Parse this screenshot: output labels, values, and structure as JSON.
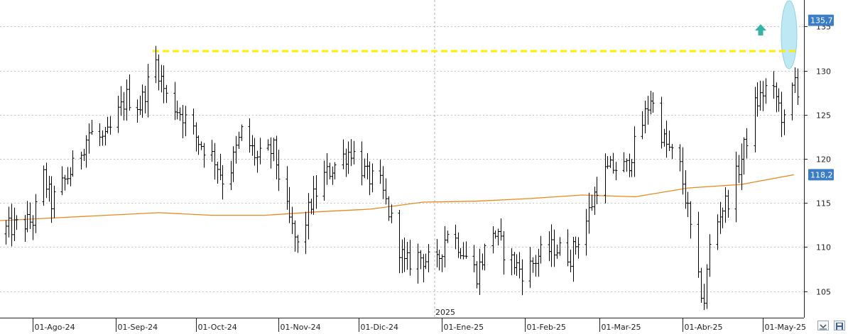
{
  "chart_data": {
    "type": "ohlc",
    "y_axis": {
      "min": 102,
      "max": 138,
      "ticks": [
        105,
        110,
        115,
        120,
        125,
        130,
        135
      ],
      "position": "right"
    },
    "x_ticks": [
      "01-Ago-24",
      "01-Sep-24",
      "01-Oct-24",
      "01-Nov-24",
      "01-Dic-24",
      "01-Ene-25",
      "01-Feb-25",
      "01-Mar-25",
      "01-Abr-25",
      "01-May-25"
    ],
    "year_marker": "2025",
    "last_price_label": "135,7",
    "last_price_value": 135.7,
    "ma_label": "118,2",
    "ma_value": 118.2,
    "resistance_level": 132.2,
    "colors": {
      "price": "#000000",
      "ma": "#e8891e",
      "resistance": "#ffee00",
      "highlight": "#bfe8f5",
      "arrow": "#35b4a6",
      "price_box": "#3b7ec6"
    },
    "ma_series": [
      113.0,
      113.3,
      113.6,
      113.9,
      113.6,
      113.6,
      114.0,
      114.3,
      115.1,
      115.2,
      115.5,
      115.9,
      115.7,
      116.7,
      117.1,
      118.2
    ],
    "price_anchors": [
      {
        "d": "2024-08-01",
        "c": 113
      },
      {
        "d": "2024-08-05",
        "c": 118
      },
      {
        "d": "2024-08-08",
        "c": 115
      },
      {
        "d": "2024-08-12",
        "c": 117
      },
      {
        "d": "2024-08-16",
        "c": 119
      },
      {
        "d": "2024-08-22",
        "c": 123
      },
      {
        "d": "2024-08-28",
        "c": 122
      },
      {
        "d": "2024-09-05",
        "c": 127
      },
      {
        "d": "2024-09-10",
        "c": 126
      },
      {
        "d": "2024-09-16",
        "c": 131
      },
      {
        "d": "2024-09-20",
        "c": 127
      },
      {
        "d": "2024-09-26",
        "c": 125
      },
      {
        "d": "2024-10-02",
        "c": 122
      },
      {
        "d": "2024-10-08",
        "c": 120
      },
      {
        "d": "2024-10-12",
        "c": 117
      },
      {
        "d": "2024-10-18",
        "c": 123
      },
      {
        "d": "2024-10-24",
        "c": 120
      },
      {
        "d": "2024-10-30",
        "c": 121
      },
      {
        "d": "2024-11-04",
        "c": 114
      },
      {
        "d": "2024-11-08",
        "c": 110
      },
      {
        "d": "2024-11-13",
        "c": 115
      },
      {
        "d": "2024-11-18",
        "c": 118
      },
      {
        "d": "2024-11-24",
        "c": 120
      },
      {
        "d": "2024-11-28",
        "c": 121
      },
      {
        "d": "2024-12-04",
        "c": 118
      },
      {
        "d": "2024-12-09",
        "c": 117
      },
      {
        "d": "2024-12-13",
        "c": 113
      },
      {
        "d": "2024-12-18",
        "c": 108
      },
      {
        "d": "2024-12-23",
        "c": 109
      },
      {
        "d": "2024-12-30",
        "c": 108
      },
      {
        "d": "2025-01-03",
        "c": 112
      },
      {
        "d": "2025-01-08",
        "c": 110
      },
      {
        "d": "2025-01-14",
        "c": 107
      },
      {
        "d": "2025-01-20",
        "c": 112
      },
      {
        "d": "2025-01-25",
        "c": 109
      },
      {
        "d": "2025-02-01",
        "c": 107
      },
      {
        "d": "2025-02-06",
        "c": 109
      },
      {
        "d": "2025-02-12",
        "c": 110
      },
      {
        "d": "2025-02-18",
        "c": 109
      },
      {
        "d": "2025-02-24",
        "c": 113
      },
      {
        "d": "2025-03-01",
        "c": 118
      },
      {
        "d": "2025-03-06",
        "c": 119
      },
      {
        "d": "2025-03-11",
        "c": 119
      },
      {
        "d": "2025-03-16",
        "c": 123
      },
      {
        "d": "2025-03-20",
        "c": 127
      },
      {
        "d": "2025-03-25",
        "c": 122
      },
      {
        "d": "2025-03-31",
        "c": 119
      },
      {
        "d": "2025-04-03",
        "c": 114
      },
      {
        "d": "2025-04-07",
        "c": 106
      },
      {
        "d": "2025-04-09",
        "c": 104
      },
      {
        "d": "2025-04-11",
        "c": 110
      },
      {
        "d": "2025-04-15",
        "c": 114
      },
      {
        "d": "2025-04-19",
        "c": 116
      },
      {
        "d": "2025-04-23",
        "c": 120
      },
      {
        "d": "2025-04-28",
        "c": 126
      },
      {
        "d": "2025-05-02",
        "c": 128
      },
      {
        "d": "2025-05-06",
        "c": 127
      },
      {
        "d": "2025-05-09",
        "c": 124
      },
      {
        "d": "2025-05-13",
        "c": 129
      },
      {
        "d": "2025-05-15",
        "c": 127
      },
      {
        "d": "2025-05-19",
        "c": 132
      },
      {
        "d": "2025-05-21",
        "c": 135.7
      }
    ]
  }
}
